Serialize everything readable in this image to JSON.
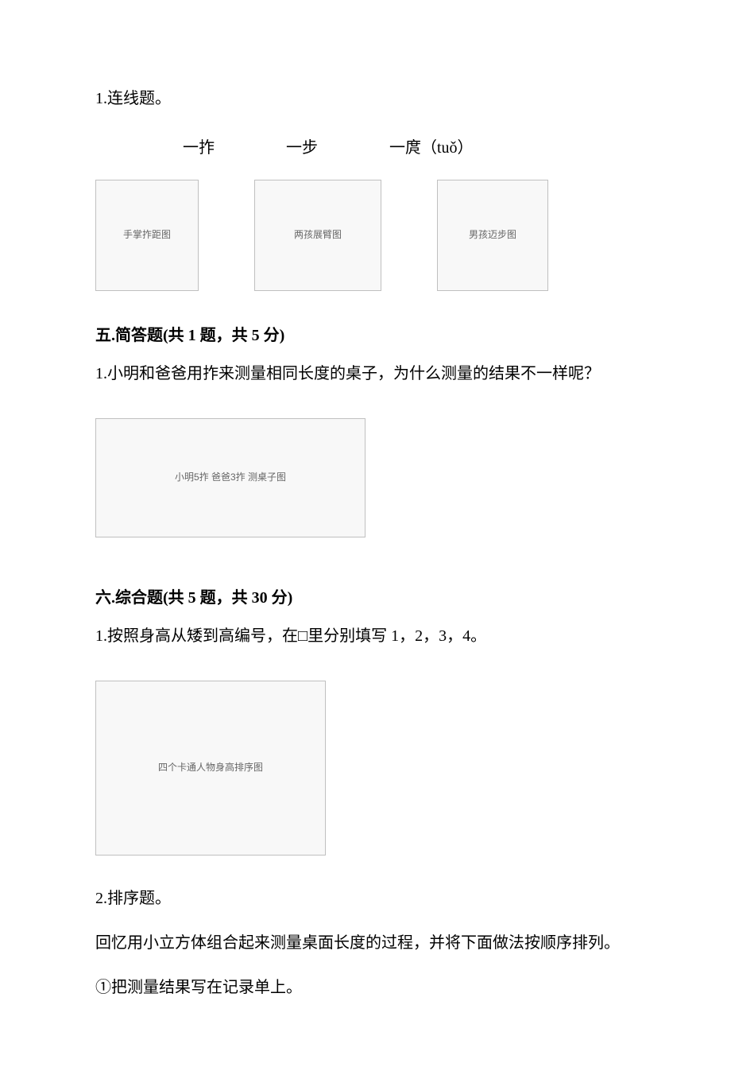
{
  "q4_1": {
    "number": "1.连线题。",
    "labels": [
      "一拃",
      "一步",
      "一庹（tuǒ）"
    ],
    "images": {
      "hand": "手掌拃距图",
      "kids": "两孩展臂图",
      "walk": "男孩迈步图"
    }
  },
  "section5": {
    "header": "五.简答题(共 1 题，共 5 分)",
    "q1": {
      "text": "1.小明和爸爸用拃来测量相同长度的桌子，为什么测量的结果不一样呢？",
      "image": "小明5拃 爸爸3拃 测桌子图"
    }
  },
  "section6": {
    "header": "六.综合题(共 5 题，共 30 分)",
    "q1": {
      "text": "1.按照身高从矮到高编号，在□里分别填写 1，2，3，4。",
      "image": "四个卡通人物身高排序图"
    },
    "q2": {
      "text": "2.排序题。",
      "line1": "回忆用小立方体组合起来测量桌面长度的过程，并将下面做法按顺序排列。",
      "line2": "①把测量结果写在记录单上。"
    }
  }
}
